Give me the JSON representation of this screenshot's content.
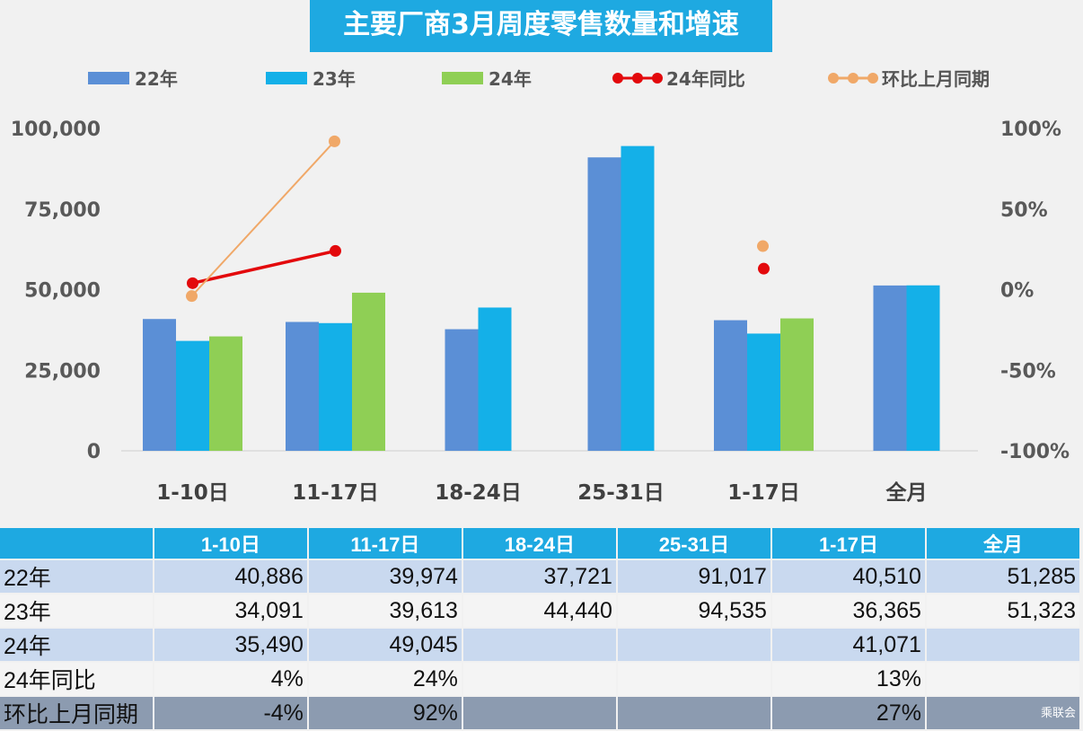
{
  "title": "主要厂商3月周度零售数量和增速",
  "legend": [
    {
      "label": "22年",
      "color": "#5b8fd6"
    },
    {
      "label": "23年",
      "color": "#14b0e8"
    },
    {
      "label": "24年",
      "color": "#8fcf55"
    },
    {
      "label": "24年同比",
      "color": "#e3090c"
    },
    {
      "label": "环比上月同期",
      "color": "#f0a868"
    }
  ],
  "chart_data": {
    "type": "bar",
    "title": "主要厂商3月周度零售数量和增速",
    "categories": [
      "1-10日",
      "11-17日",
      "18-24日",
      "25-31日",
      "1-17日",
      "全月"
    ],
    "series": [
      {
        "name": "22年",
        "values": [
          40886,
          39974,
          37721,
          91017,
          40510,
          51285
        ]
      },
      {
        "name": "23年",
        "values": [
          34091,
          39613,
          44440,
          94535,
          36365,
          51323
        ]
      },
      {
        "name": "24年",
        "values": [
          35490,
          49045,
          null,
          null,
          41071,
          null
        ]
      }
    ],
    "line_series": [
      {
        "name": "24年同比",
        "values": [
          4,
          24,
          null,
          null,
          13,
          null
        ],
        "axis": "right",
        "unit": "%"
      },
      {
        "name": "环比上月同期",
        "values": [
          -4,
          92,
          null,
          null,
          27,
          null
        ],
        "axis": "right",
        "unit": "%"
      }
    ],
    "ylim": [
      0,
      100000
    ],
    "y_ticks": [
      "0",
      "25,000",
      "50,000",
      "75,000",
      "100,000"
    ],
    "y2lim": [
      -100,
      100
    ],
    "y2_ticks": [
      "-100%",
      "-50%",
      "0%",
      "50%",
      "100%"
    ],
    "grid": false,
    "legend_position": "top"
  },
  "table": {
    "headers": [
      "",
      "1-10日",
      "11-17日",
      "18-24日",
      "25-31日",
      "1-17日",
      "全月"
    ],
    "rows": [
      [
        "22年",
        "40,886",
        "39,974",
        "37,721",
        "91,017",
        "40,510",
        "51,285"
      ],
      [
        "23年",
        "34,091",
        "39,613",
        "44,440",
        "94,535",
        "36,365",
        "51,323"
      ],
      [
        "24年",
        "35,490",
        "49,045",
        "",
        "",
        "41,071",
        ""
      ],
      [
        "24年同比",
        "4%",
        "24%",
        "",
        "",
        "13%",
        ""
      ],
      [
        "环比上月同期",
        "-4%",
        "92%",
        "",
        "",
        "27%",
        ""
      ]
    ]
  },
  "watermark": "乘联会"
}
